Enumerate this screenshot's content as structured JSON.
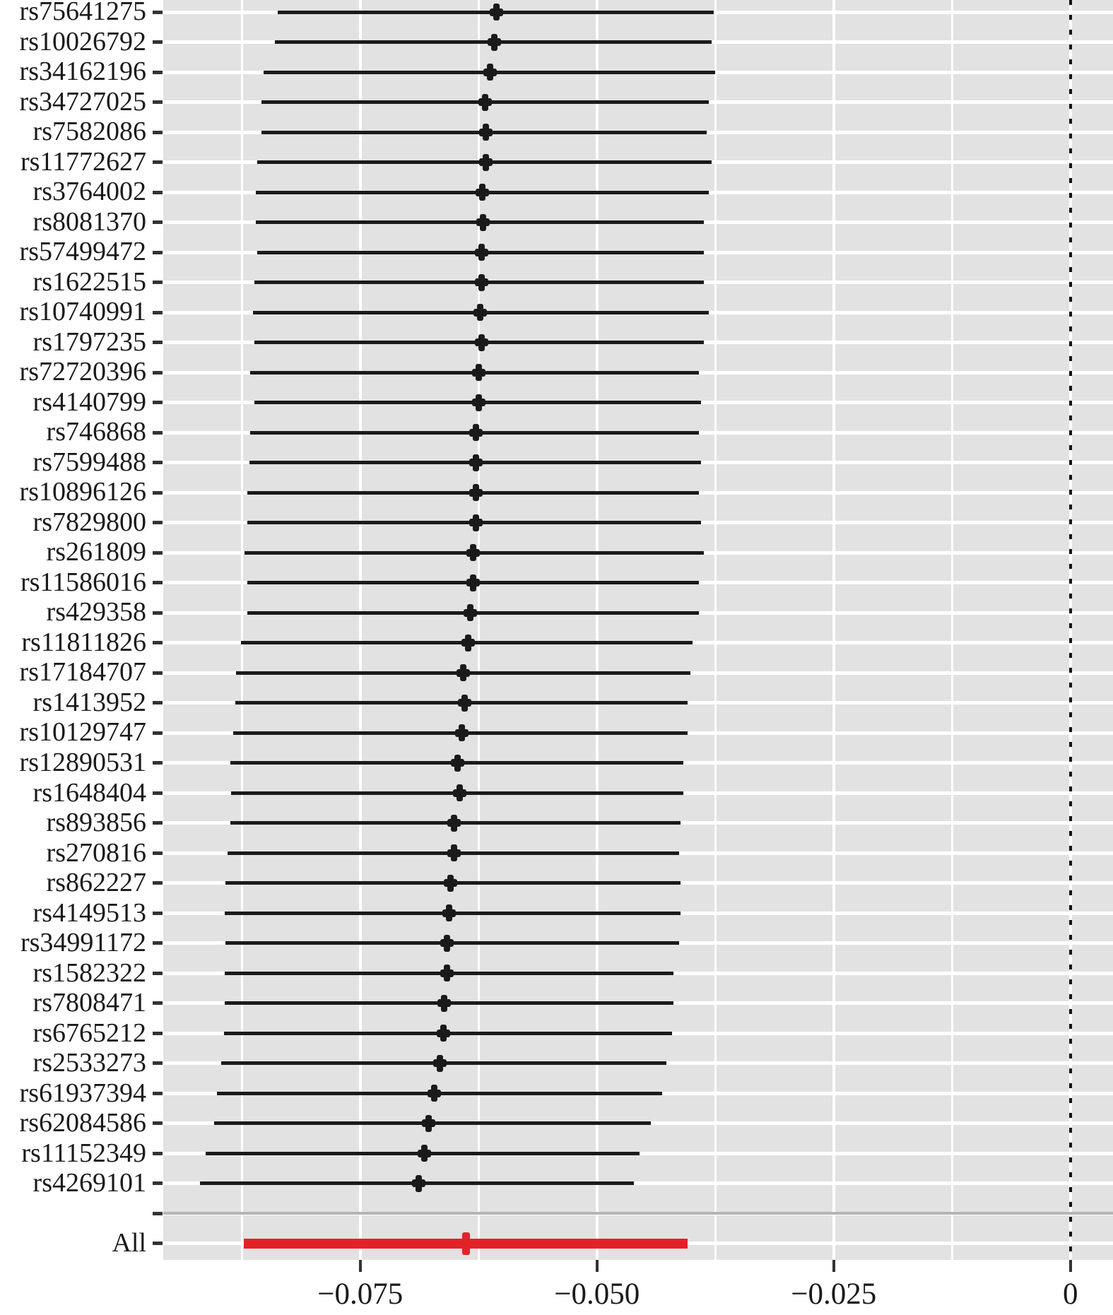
{
  "figure": {
    "kind": "leave-one-out forest plot",
    "colors": {
      "panel_background": "#e2e2e2",
      "gridline": "#ffffff",
      "ci_black": "#1a1a1a",
      "summary_red": "#e32228",
      "separator_gray": "#b5b5b5",
      "text": "#1a1a1a",
      "zero_line": "#111111",
      "tick": "#333333"
    }
  },
  "chart_data": {
    "type": "forest",
    "title": "",
    "xlabel": "",
    "ylabel": "",
    "legend": "none",
    "grid": "on",
    "x_range": [
      -0.0958,
      0.0045
    ],
    "x_major_ticks": [
      {
        "value": -0.075,
        "label": "−0.075"
      },
      {
        "value": -0.05,
        "label": "−0.050"
      },
      {
        "value": -0.025,
        "label": "−0.025"
      },
      {
        "value": 0,
        "label": "0"
      }
    ],
    "x_minor_ticks": [
      -0.0875,
      -0.0625,
      -0.0375,
      -0.0125
    ],
    "zero_reference_line": 0,
    "rows": [
      {
        "type": "snp",
        "label": "rs75641275",
        "estimate": -0.0606,
        "ci_lower": -0.0837,
        "ci_upper": -0.0377
      },
      {
        "type": "snp",
        "label": "rs10026792",
        "estimate": -0.0608,
        "ci_lower": -0.084,
        "ci_upper": -0.0379
      },
      {
        "type": "snp",
        "label": "rs34162196",
        "estimate": -0.0613,
        "ci_lower": -0.0852,
        "ci_upper": -0.0375
      },
      {
        "type": "snp",
        "label": "rs34727025",
        "estimate": -0.0618,
        "ci_lower": -0.0854,
        "ci_upper": -0.0382
      },
      {
        "type": "snp",
        "label": "rs7582086",
        "estimate": -0.0617,
        "ci_lower": -0.0854,
        "ci_upper": -0.0384
      },
      {
        "type": "snp",
        "label": "rs11772627",
        "estimate": -0.0617,
        "ci_lower": -0.0859,
        "ci_upper": -0.0379
      },
      {
        "type": "snp",
        "label": "rs3764002",
        "estimate": -0.0621,
        "ci_lower": -0.086,
        "ci_upper": -0.0382
      },
      {
        "type": "snp",
        "label": "rs8081370",
        "estimate": -0.062,
        "ci_lower": -0.086,
        "ci_upper": -0.0387
      },
      {
        "type": "snp",
        "label": "rs57499472",
        "estimate": -0.0622,
        "ci_lower": -0.0859,
        "ci_upper": -0.0387
      },
      {
        "type": "snp",
        "label": "rs1622515",
        "estimate": -0.0622,
        "ci_lower": -0.0862,
        "ci_upper": -0.0387
      },
      {
        "type": "snp",
        "label": "rs10740991",
        "estimate": -0.0623,
        "ci_lower": -0.0863,
        "ci_upper": -0.0382
      },
      {
        "type": "snp",
        "label": "rs1797235",
        "estimate": -0.0622,
        "ci_lower": -0.0862,
        "ci_upper": -0.0387
      },
      {
        "type": "snp",
        "label": "rs72720396",
        "estimate": -0.0625,
        "ci_lower": -0.0866,
        "ci_upper": -0.0392
      },
      {
        "type": "snp",
        "label": "rs4140799",
        "estimate": -0.0625,
        "ci_lower": -0.0862,
        "ci_upper": -0.039
      },
      {
        "type": "snp",
        "label": "rs746868",
        "estimate": -0.0628,
        "ci_lower": -0.0866,
        "ci_upper": -0.0392
      },
      {
        "type": "snp",
        "label": "rs7599488",
        "estimate": -0.0628,
        "ci_lower": -0.0867,
        "ci_upper": -0.039
      },
      {
        "type": "snp",
        "label": "rs10896126",
        "estimate": -0.0628,
        "ci_lower": -0.0869,
        "ci_upper": -0.0392
      },
      {
        "type": "snp",
        "label": "rs7829800",
        "estimate": -0.0628,
        "ci_lower": -0.0869,
        "ci_upper": -0.039
      },
      {
        "type": "snp",
        "label": "rs261809",
        "estimate": -0.0631,
        "ci_lower": -0.0872,
        "ci_upper": -0.0387
      },
      {
        "type": "snp",
        "label": "rs11586016",
        "estimate": -0.0631,
        "ci_lower": -0.0869,
        "ci_upper": -0.0392
      },
      {
        "type": "snp",
        "label": "rs429358",
        "estimate": -0.0634,
        "ci_lower": -0.0869,
        "ci_upper": -0.0392
      },
      {
        "type": "snp",
        "label": "rs11811826",
        "estimate": -0.0636,
        "ci_lower": -0.0876,
        "ci_upper": -0.0399
      },
      {
        "type": "snp",
        "label": "rs17184707",
        "estimate": -0.0641,
        "ci_lower": -0.0881,
        "ci_upper": -0.0401
      },
      {
        "type": "snp",
        "label": "rs1413952",
        "estimate": -0.064,
        "ci_lower": -0.0882,
        "ci_upper": -0.0404
      },
      {
        "type": "snp",
        "label": "rs10129747",
        "estimate": -0.0643,
        "ci_lower": -0.0884,
        "ci_upper": -0.0404
      },
      {
        "type": "snp",
        "label": "rs12890531",
        "estimate": -0.0647,
        "ci_lower": -0.0887,
        "ci_upper": -0.0409
      },
      {
        "type": "snp",
        "label": "rs1648404",
        "estimate": -0.0645,
        "ci_lower": -0.0886,
        "ci_upper": -0.0409
      },
      {
        "type": "snp",
        "label": "rs893856",
        "estimate": -0.0651,
        "ci_lower": -0.0887,
        "ci_upper": -0.0412
      },
      {
        "type": "snp",
        "label": "rs270816",
        "estimate": -0.0651,
        "ci_lower": -0.089,
        "ci_upper": -0.0413
      },
      {
        "type": "snp",
        "label": "rs862227",
        "estimate": -0.0655,
        "ci_lower": -0.0892,
        "ci_upper": -0.0412
      },
      {
        "type": "snp",
        "label": "rs4149513",
        "estimate": -0.0656,
        "ci_lower": -0.0893,
        "ci_upper": -0.0412
      },
      {
        "type": "snp",
        "label": "rs34991172",
        "estimate": -0.0658,
        "ci_lower": -0.0892,
        "ci_upper": -0.0413
      },
      {
        "type": "snp",
        "label": "rs1582322",
        "estimate": -0.0658,
        "ci_lower": -0.0893,
        "ci_upper": -0.0419
      },
      {
        "type": "snp",
        "label": "rs7808471",
        "estimate": -0.0661,
        "ci_lower": -0.0893,
        "ci_upper": -0.0419
      },
      {
        "type": "snp",
        "label": "rs6765212",
        "estimate": -0.0662,
        "ci_lower": -0.0894,
        "ci_upper": -0.0421
      },
      {
        "type": "snp",
        "label": "rs2533273",
        "estimate": -0.0666,
        "ci_lower": -0.0897,
        "ci_upper": -0.0427
      },
      {
        "type": "snp",
        "label": "rs61937394",
        "estimate": -0.0672,
        "ci_lower": -0.0901,
        "ci_upper": -0.0431
      },
      {
        "type": "snp",
        "label": "rs62084586",
        "estimate": -0.0678,
        "ci_lower": -0.0904,
        "ci_upper": -0.0443
      },
      {
        "type": "snp",
        "label": "rs11152349",
        "estimate": -0.0682,
        "ci_lower": -0.0913,
        "ci_upper": -0.0455
      },
      {
        "type": "snp",
        "label": "rs4269101",
        "estimate": -0.0688,
        "ci_lower": -0.0919,
        "ci_upper": -0.0461
      },
      {
        "type": "separator",
        "label": ""
      },
      {
        "type": "summary",
        "label": "All",
        "estimate": -0.0638,
        "ci_lower": -0.0873,
        "ci_upper": -0.0404
      }
    ]
  }
}
